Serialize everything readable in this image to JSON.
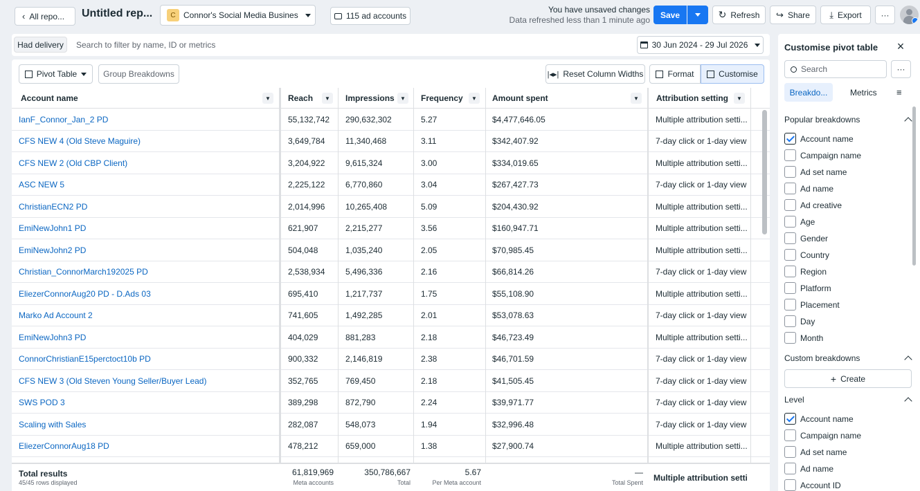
{
  "topbar": {
    "back_label": "All repo...",
    "title": "Untitled rep...",
    "business_initial": "C",
    "business_name": "Connor's Social Media Business'...",
    "accounts_label": "115 ad accounts",
    "unsaved_line1": "You have unsaved changes",
    "unsaved_line2": "Data refreshed less than 1 minute ago",
    "save_label": "Save",
    "refresh_label": "Refresh",
    "share_label": "Share",
    "export_label": "Export",
    "more_label": "···"
  },
  "filterbar": {
    "chip_label": "Had delivery",
    "search_placeholder": "Search to filter by name, ID or metrics",
    "date_range": "30 Jun 2024 - 29 Jul 2026"
  },
  "toolbar": {
    "view_label": "Pivot Table",
    "group_label": "Group Breakdowns",
    "reset_label": "Reset Column Widths",
    "format_label": "Format",
    "customise_label": "Customise"
  },
  "table": {
    "columns": [
      "Account name",
      "Reach",
      "Impressions",
      "Frequency",
      "Amount spent",
      "Attribution setting"
    ],
    "rows": [
      [
        "IanF_Connor_Jan_2 PD",
        "55,132,742",
        "290,632,302",
        "5.27",
        "$4,477,646.05",
        "Multiple attribution setti..."
      ],
      [
        "CFS NEW 4 (Old Steve Maguire)",
        "3,649,784",
        "11,340,468",
        "3.11",
        "$342,407.92",
        "7-day click or 1-day view"
      ],
      [
        "CFS NEW 2 (Old CBP Client)",
        "3,204,922",
        "9,615,324",
        "3.00",
        "$334,019.65",
        "Multiple attribution setti..."
      ],
      [
        "ASC NEW 5",
        "2,225,122",
        "6,770,860",
        "3.04",
        "$267,427.73",
        "7-day click or 1-day view"
      ],
      [
        "ChristianECN2 PD",
        "2,014,996",
        "10,265,408",
        "5.09",
        "$204,430.92",
        "Multiple attribution setti..."
      ],
      [
        "EmiNewJohn1 PD",
        "621,907",
        "2,215,277",
        "3.56",
        "$160,947.71",
        "Multiple attribution setti..."
      ],
      [
        "EmiNewJohn2 PD",
        "504,048",
        "1,035,240",
        "2.05",
        "$70,985.45",
        "Multiple attribution setti..."
      ],
      [
        "Christian_ConnorMarch192025 PD",
        "2,538,934",
        "5,496,336",
        "2.16",
        "$66,814.26",
        "7-day click or 1-day view"
      ],
      [
        "EliezerConnorAug20 PD - D.Ads 03",
        "695,410",
        "1,217,737",
        "1.75",
        "$55,108.90",
        "Multiple attribution setti..."
      ],
      [
        "Marko Ad Account 2",
        "741,605",
        "1,492,285",
        "2.01",
        "$53,078.63",
        "7-day click or 1-day view"
      ],
      [
        "EmiNewJohn3 PD",
        "404,029",
        "881,283",
        "2.18",
        "$46,723.49",
        "Multiple attribution setti..."
      ],
      [
        "ConnorChristianE15perctoct10b PD",
        "900,332",
        "2,146,819",
        "2.38",
        "$46,701.59",
        "7-day click or 1-day view"
      ],
      [
        "CFS NEW 3 (Old Steven Young Seller/Buyer Lead)",
        "352,765",
        "769,450",
        "2.18",
        "$41,505.45",
        "7-day click or 1-day view"
      ],
      [
        "SWS POD 3",
        "389,298",
        "872,790",
        "2.24",
        "$39,971.77",
        "7-day click or 1-day view"
      ],
      [
        "Scaling with Sales",
        "282,087",
        "548,073",
        "1.94",
        "$32,996.48",
        "7-day click or 1-day view"
      ],
      [
        "EliezerConnorAug18 PD",
        "478,212",
        "659,000",
        "1.38",
        "$27,900.74",
        "Multiple attribution setti..."
      ]
    ],
    "totals": {
      "label": "Total results",
      "sublabel": "45/45 rows displayed",
      "reach": "61,819,969",
      "reach_sub": "Meta accounts",
      "impressions": "350,786,667",
      "impressions_sub": "Total",
      "frequency": "5.67",
      "frequency_sub": "Per Meta account",
      "amount": "—",
      "amount_sub": "Total Spent",
      "attribution": "Multiple attribution setti..."
    }
  },
  "panel": {
    "title": "Customise pivot table",
    "search_placeholder": "Search",
    "tab_breakdowns": "Breakdo...",
    "tab_metrics": "Metrics",
    "popular_title": "Popular breakdowns",
    "popular": [
      {
        "label": "Account name",
        "checked": true
      },
      {
        "label": "Campaign name",
        "checked": false
      },
      {
        "label": "Ad set name",
        "checked": false
      },
      {
        "label": "Ad name",
        "checked": false
      },
      {
        "label": "Ad creative",
        "checked": false
      },
      {
        "label": "Age",
        "checked": false
      },
      {
        "label": "Gender",
        "checked": false
      },
      {
        "label": "Country",
        "checked": false
      },
      {
        "label": "Region",
        "checked": false
      },
      {
        "label": "Platform",
        "checked": false
      },
      {
        "label": "Placement",
        "checked": false
      },
      {
        "label": "Day",
        "checked": false
      },
      {
        "label": "Month",
        "checked": false
      }
    ],
    "custom_title": "Custom breakdowns",
    "create_label": "Create",
    "level_title": "Level",
    "level": [
      {
        "label": "Account name",
        "checked": true
      },
      {
        "label": "Campaign name",
        "checked": false
      },
      {
        "label": "Ad set name",
        "checked": false
      },
      {
        "label": "Ad name",
        "checked": false
      },
      {
        "label": "Account ID",
        "checked": false
      }
    ]
  }
}
